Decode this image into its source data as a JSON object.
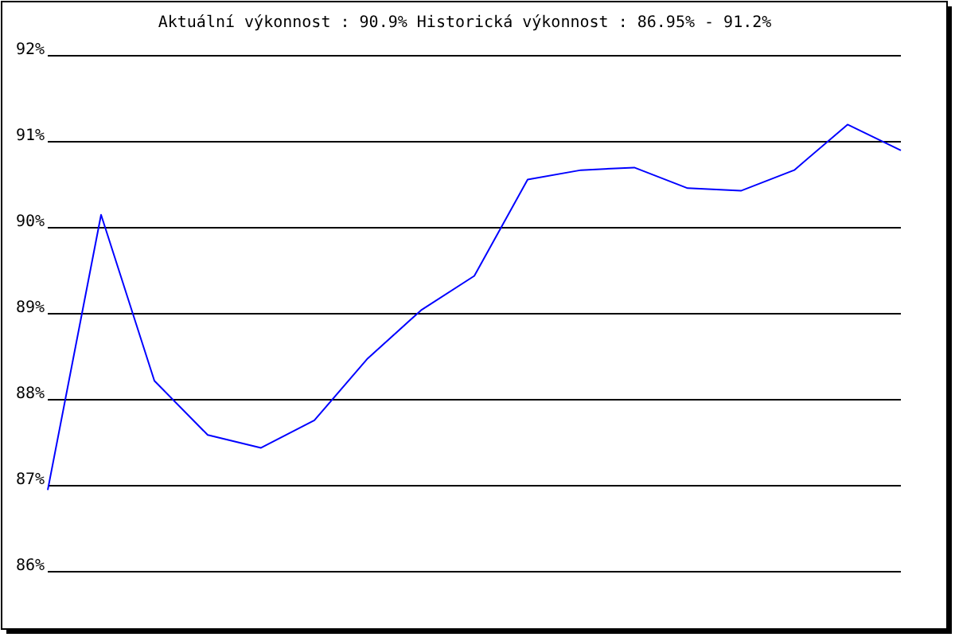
{
  "chart_data": {
    "type": "line",
    "title": "Aktuální výkonnost : 90.9%  Historická výkonnost : 86.95% - 91.2%",
    "categories": [
      null,
      null,
      null,
      null,
      null,
      null,
      null,
      null,
      null,
      null,
      null,
      null,
      null,
      null,
      null,
      null,
      null
    ],
    "series": [
      {
        "color": "#0000ff",
        "values": [
          86.95,
          90.15,
          88.22,
          87.59,
          87.44,
          87.76,
          88.48,
          89.04,
          89.44,
          90.56,
          90.67,
          90.7,
          90.46,
          90.43,
          90.67,
          91.2,
          90.9
        ]
      }
    ],
    "ylim": [
      86,
      92
    ],
    "yticks": [
      {
        "value": 86,
        "label": "86%"
      },
      {
        "value": 87,
        "label": "87%"
      },
      {
        "value": 88,
        "label": "88%"
      },
      {
        "value": 89,
        "label": "89%"
      },
      {
        "value": 90,
        "label": "90%"
      },
      {
        "value": 91,
        "label": "91%"
      },
      {
        "value": 92,
        "label": "92%"
      }
    ],
    "grid": "y",
    "marker": "none",
    "line_style": "solid"
  }
}
